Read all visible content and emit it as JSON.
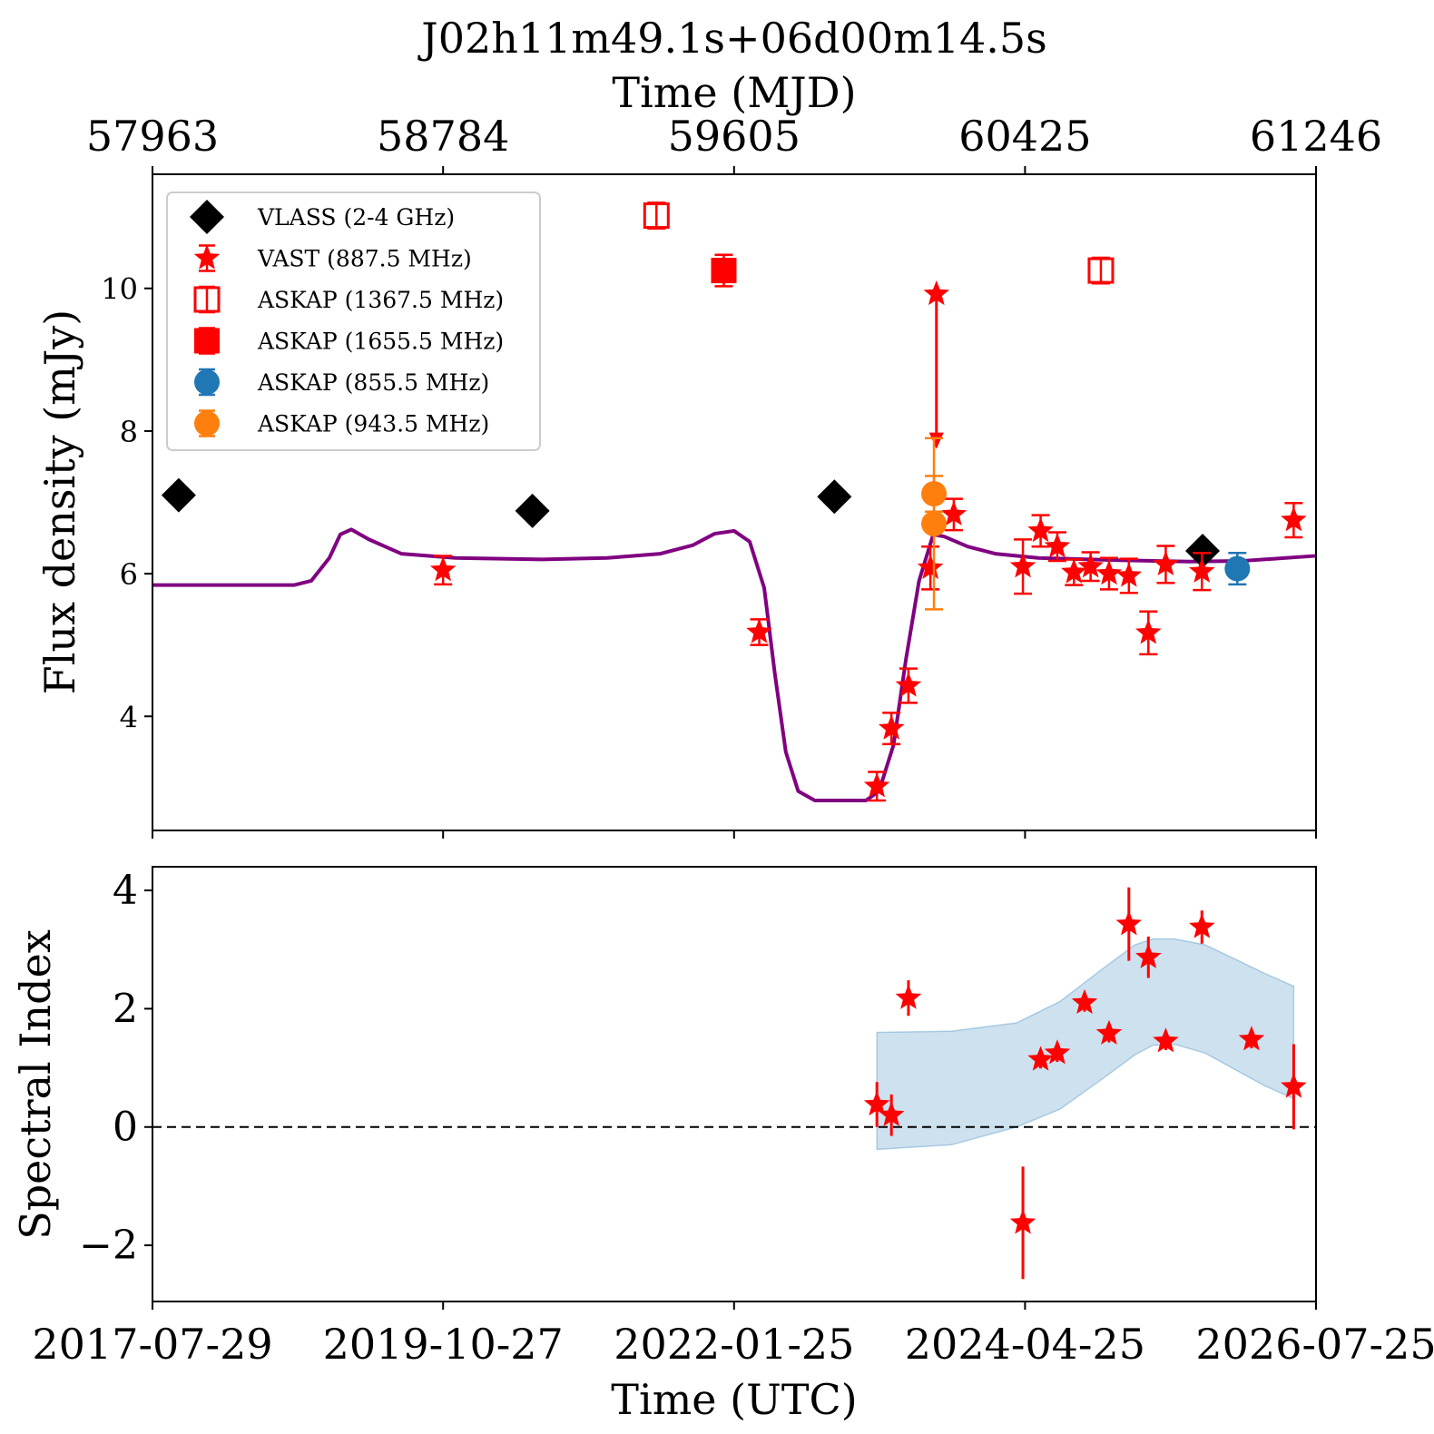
{
  "chart_data": [
    {
      "type": "scatter",
      "title": "J02h11m49.1s+06d00m14.5s",
      "top_xlabel": "Time (MJD)",
      "top_xticks": [
        "57963",
        "58784",
        "59605",
        "60425",
        "61246"
      ],
      "ylabel": "Flux density (mJy)",
      "yticks": [
        "4",
        "6",
        "8",
        "10"
      ],
      "xlim": [
        "2017-07-29",
        "2026-07-25"
      ],
      "ylim": [
        2.4,
        11.6
      ],
      "x_major_ticks": [
        "2017-07-29",
        "2019-10-27",
        "2022-01-25",
        "2024-04-25",
        "2026-07-25"
      ],
      "legend_position": "upper-left",
      "legend": [
        {
          "label": "VLASS (2-4 GHz)",
          "marker": "diamond",
          "color": "#000000"
        },
        {
          "label": "VAST (887.5 MHz)",
          "marker": "star",
          "color": "#ff0000"
        },
        {
          "label": "ASKAP (1367.5 MHz)",
          "marker": "square-open",
          "color": "#ff0000"
        },
        {
          "label": "ASKAP (1655.5 MHz)",
          "marker": "square",
          "color": "#ff0000"
        },
        {
          "label": "ASKAP (855.5 MHz)",
          "marker": "circle",
          "color": "#1f77b4"
        },
        {
          "label": "ASKAP (943.5 MHz)",
          "marker": "circle",
          "color": "#ff7f0e"
        }
      ],
      "series": [
        {
          "name": "VLASS (2-4 GHz)",
          "marker": "diamond",
          "color": "#000000",
          "points": [
            {
              "x": "2017-10-11",
              "y": 7.1
            },
            {
              "x": "2020-07-05",
              "y": 6.88
            },
            {
              "x": "2022-11-04",
              "y": 7.08
            },
            {
              "x": "2025-09-08",
              "y": 6.32
            }
          ]
        },
        {
          "name": "VAST (887.5 MHz)",
          "marker": "star",
          "color": "#ff0000",
          "points": [
            {
              "x": "2019-10-27",
              "y": 6.05,
              "err": 0.2
            },
            {
              "x": "2022-04-06",
              "y": 5.18,
              "err": 0.18
            },
            {
              "x": "2023-03-04",
              "y": 3.02,
              "err": 0.2
            },
            {
              "x": "2023-04-14",
              "y": 3.83,
              "err": 0.22
            },
            {
              "x": "2023-06-01",
              "y": 4.43,
              "err": 0.24
            },
            {
              "x": "2023-08-02",
              "y": 6.08,
              "err": 0.3
            },
            {
              "x": "2023-10-07",
              "y": 6.83,
              "err": 0.22
            },
            {
              "x": "2024-04-19",
              "y": 6.1,
              "err": 0.38
            },
            {
              "x": "2024-06-08",
              "y": 6.6,
              "err": 0.22
            },
            {
              "x": "2024-07-25",
              "y": 6.38,
              "err": 0.2
            },
            {
              "x": "2024-09-10",
              "y": 6.02,
              "err": 0.18
            },
            {
              "x": "2024-10-27",
              "y": 6.1,
              "err": 0.2
            },
            {
              "x": "2024-12-18",
              "y": 6.0,
              "err": 0.22
            },
            {
              "x": "2025-02-12",
              "y": 5.97,
              "err": 0.24
            },
            {
              "x": "2025-04-08",
              "y": 5.17,
              "err": 0.3
            },
            {
              "x": "2025-05-27",
              "y": 6.13,
              "err": 0.26
            },
            {
              "x": "2025-09-06",
              "y": 6.03,
              "err": 0.26
            },
            {
              "x": "2026-05-23",
              "y": 6.75,
              "err": 0.24
            }
          ]
        },
        {
          "name": "VAST (887.5 MHz) upper limit",
          "marker": "star-limit",
          "color": "#ff0000",
          "points": [
            {
              "x": "2023-08-19",
              "y": 9.92,
              "limit_to": 7.8
            }
          ]
        },
        {
          "name": "ASKAP (1367.5 MHz)",
          "marker": "square-open",
          "color": "#ff0000",
          "points": [
            {
              "x": "2021-06-20",
              "y": 11.02,
              "err": 0.18
            },
            {
              "x": "2024-11-25",
              "y": 10.25,
              "err": 0.18
            }
          ]
        },
        {
          "name": "ASKAP (1655.5 MHz)",
          "marker": "square",
          "color": "#ff0000",
          "points": [
            {
              "x": "2021-12-27",
              "y": 10.25,
              "err": 0.22
            }
          ]
        },
        {
          "name": "ASKAP (855.5 MHz)",
          "marker": "circle",
          "color": "#1f77b4",
          "points": [
            {
              "x": "2025-12-15",
              "y": 6.07,
              "err": 0.22
            }
          ]
        },
        {
          "name": "ASKAP (943.5 MHz)",
          "marker": "circle",
          "color": "#ff7f0e",
          "points": [
            {
              "x": "2023-08-12",
              "y": 6.7,
              "err": 1.2
            },
            {
              "x": "2023-08-12",
              "y": 7.12,
              "err": 0.25
            }
          ]
        },
        {
          "name": "model",
          "marker": "line",
          "color": "#800080",
          "points": [
            {
              "x": "2017-07-29",
              "y": 5.84
            },
            {
              "x": "2018-09-01",
              "y": 5.84
            },
            {
              "x": "2018-10-20",
              "y": 5.9
            },
            {
              "x": "2018-12-10",
              "y": 6.22
            },
            {
              "x": "2019-01-10",
              "y": 6.55
            },
            {
              "x": "2019-02-10",
              "y": 6.62
            },
            {
              "x": "2019-04-01",
              "y": 6.48
            },
            {
              "x": "2019-07-01",
              "y": 6.28
            },
            {
              "x": "2019-12-01",
              "y": 6.22
            },
            {
              "x": "2020-08-01",
              "y": 6.2
            },
            {
              "x": "2021-02-01",
              "y": 6.22
            },
            {
              "x": "2021-07-01",
              "y": 6.28
            },
            {
              "x": "2021-10-01",
              "y": 6.4
            },
            {
              "x": "2021-12-01",
              "y": 6.56
            },
            {
              "x": "2022-01-25",
              "y": 6.6
            },
            {
              "x": "2022-03-10",
              "y": 6.45
            },
            {
              "x": "2022-04-20",
              "y": 5.8
            },
            {
              "x": "2022-05-20",
              "y": 4.6
            },
            {
              "x": "2022-06-20",
              "y": 3.5
            },
            {
              "x": "2022-07-25",
              "y": 2.95
            },
            {
              "x": "2022-09-10",
              "y": 2.82
            },
            {
              "x": "2023-02-01",
              "y": 2.82
            },
            {
              "x": "2023-03-10",
              "y": 2.95
            },
            {
              "x": "2023-04-20",
              "y": 3.6
            },
            {
              "x": "2023-05-25",
              "y": 4.8
            },
            {
              "x": "2023-07-01",
              "y": 5.9
            },
            {
              "x": "2023-08-10",
              "y": 6.55
            },
            {
              "x": "2023-09-10",
              "y": 6.52
            },
            {
              "x": "2023-11-15",
              "y": 6.38
            },
            {
              "x": "2024-02-01",
              "y": 6.28
            },
            {
              "x": "2024-06-01",
              "y": 6.22
            },
            {
              "x": "2025-01-01",
              "y": 6.19
            },
            {
              "x": "2025-08-01",
              "y": 6.17
            },
            {
              "x": "2026-01-01",
              "y": 6.18
            },
            {
              "x": "2026-07-25",
              "y": 6.25
            }
          ]
        }
      ]
    },
    {
      "type": "scatter",
      "xlabel": "Time (UTC)",
      "ylabel": "Spectral Index",
      "xticks": [
        "2017-07-29",
        "2019-10-27",
        "2022-01-25",
        "2024-04-25",
        "2026-07-25"
      ],
      "yticks": [
        "−2",
        "0",
        "2",
        "4"
      ],
      "xlim": [
        "2017-07-29",
        "2026-07-25"
      ],
      "ylim": [
        -2.95,
        4.4
      ],
      "reference_line": {
        "y": 0,
        "style": "dashed",
        "color": "#000000"
      },
      "series": [
        {
          "name": "spectral index",
          "marker": "star",
          "color": "#ff0000",
          "points": [
            {
              "x": "2023-03-04",
              "y": 0.38,
              "err": 0.38
            },
            {
              "x": "2023-04-14",
              "y": 0.2,
              "err": 0.35
            },
            {
              "x": "2023-06-01",
              "y": 2.18,
              "err": 0.3
            },
            {
              "x": "2024-04-19",
              "y": -1.62,
              "err": 0.95
            },
            {
              "x": "2024-06-08",
              "y": 1.14,
              "err": 0.15
            },
            {
              "x": "2024-07-25",
              "y": 1.25,
              "err": 0.15
            },
            {
              "x": "2024-10-10",
              "y": 2.1,
              "err": 0.15
            },
            {
              "x": "2024-12-18",
              "y": 1.58,
              "err": 0.15
            },
            {
              "x": "2025-02-12",
              "y": 3.43,
              "err": 0.62
            },
            {
              "x": "2025-04-08",
              "y": 2.87,
              "err": 0.35
            },
            {
              "x": "2025-05-27",
              "y": 1.45,
              "err": 0.15
            },
            {
              "x": "2025-09-06",
              "y": 3.38,
              "err": 0.28
            },
            {
              "x": "2026-01-24",
              "y": 1.48,
              "err": 0.15
            },
            {
              "x": "2026-05-23",
              "y": 0.68,
              "err": 0.72
            }
          ]
        },
        {
          "name": "band",
          "marker": "band",
          "color": "#1f77b4",
          "points": [
            {
              "x": "2023-03-04",
              "upper": 1.6,
              "lower": -0.38
            },
            {
              "x": "2023-10-01",
              "upper": 1.62,
              "lower": -0.3
            },
            {
              "x": "2024-04-01",
              "upper": 1.76,
              "lower": 0.0
            },
            {
              "x": "2024-08-01",
              "upper": 2.12,
              "lower": 0.3
            },
            {
              "x": "2024-12-01",
              "upper": 2.68,
              "lower": 0.82
            },
            {
              "x": "2025-03-01",
              "upper": 3.08,
              "lower": 1.22
            },
            {
              "x": "2025-04-20",
              "upper": 3.18,
              "lower": 1.38
            },
            {
              "x": "2025-06-20",
              "upper": 3.18,
              "lower": 1.4
            },
            {
              "x": "2025-09-15",
              "upper": 3.08,
              "lower": 1.25
            },
            {
              "x": "2025-12-15",
              "upper": 2.82,
              "lower": 0.95
            },
            {
              "x": "2026-03-01",
              "upper": 2.6,
              "lower": 0.7
            },
            {
              "x": "2026-05-23",
              "upper": 2.38,
              "lower": 0.48
            }
          ]
        }
      ]
    }
  ]
}
